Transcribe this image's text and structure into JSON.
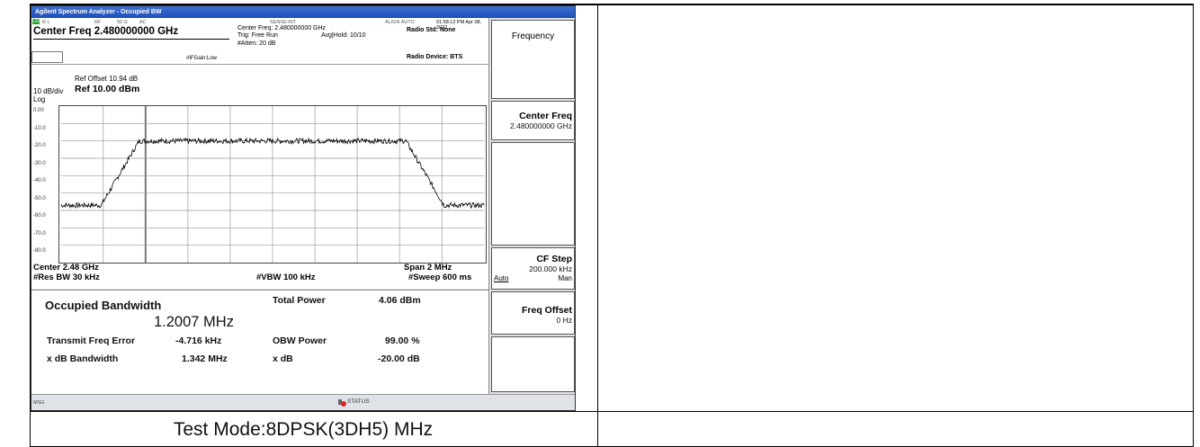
{
  "window": {
    "title": "Agilent Spectrum Analyzer - Occupied BW"
  },
  "top_bar": {
    "lxi": "LXI",
    "rl": "R L",
    "rf": "RF",
    "impedance": "50 Ω",
    "coupling": "AC",
    "sense": "SENSE:INT",
    "align": "ALIGN AUTO",
    "timestamp": "01:58:12 PM Apr 08, 2022",
    "center_freq_big": "Center Freq 2.480000000 GHz",
    "center_freq_small": "Center Freq: 2.480000000 GHz",
    "trig": "Trig: Free Run",
    "avg_hold": "Avg|Hold: 10/10",
    "atten": "#Atten: 20 dB",
    "if_gain": "#IFGain:Low",
    "radio_std": "Radio Std: None",
    "radio_device": "Radio Device: BTS"
  },
  "plot_header": {
    "ref_offset": "Ref Offset 10.94 dB",
    "scale": "10 dB/div",
    "ref_level": "Ref 10.00 dBm",
    "log": "Log"
  },
  "y_ticks": [
    "0.00",
    "-10.0",
    "-20.0",
    "-30.0",
    "-40.0",
    "-50.0",
    "-60.0",
    "-70.0",
    "-80.0"
  ],
  "axis": {
    "center": "Center  2.48 GHz",
    "span": "Span 2 MHz",
    "res_bw": "#Res BW  30 kHz",
    "vbw": "#VBW  100 kHz",
    "sweep": "#Sweep  600 ms"
  },
  "results": {
    "obw_label": "Occupied Bandwidth",
    "obw_value": "1.2007 MHz",
    "total_power_label": "Total Power",
    "total_power_value": "4.06 dBm",
    "tx_freq_err_label": "Transmit Freq Error",
    "tx_freq_err_value": "-4.716 kHz",
    "obw_power_label": "OBW Power",
    "obw_power_value": "99.00 %",
    "xdb_bw_label": "x dB Bandwidth",
    "xdb_bw_value": "1.342 MHz",
    "xdb_label": "x dB",
    "xdb_value": "-20.00 dB"
  },
  "softkeys": {
    "menu_title": "Frequency",
    "center_freq_label": "Center Freq",
    "center_freq_value": "2.480000000 GHz",
    "cf_step_label": "CF Step",
    "cf_step_value": "200.000 kHz",
    "cf_step_auto": "Auto",
    "cf_step_man": "Man",
    "freq_offset_label": "Freq Offset",
    "freq_offset_value": "0 Hz"
  },
  "status": {
    "msg": "MSG",
    "status": "STATUS"
  },
  "caption": "Test Mode:8DPSK(3DH5) MHz",
  "colors": {
    "title_bar": "#2656c4",
    "background": "#dfe3e7",
    "trace": "#000000"
  },
  "trace": {
    "span_mhz": 2,
    "noise_floor_dbm": -47,
    "in_band_dbm": -10,
    "band_edges_mhz": [
      -0.72,
      0.72
    ]
  }
}
